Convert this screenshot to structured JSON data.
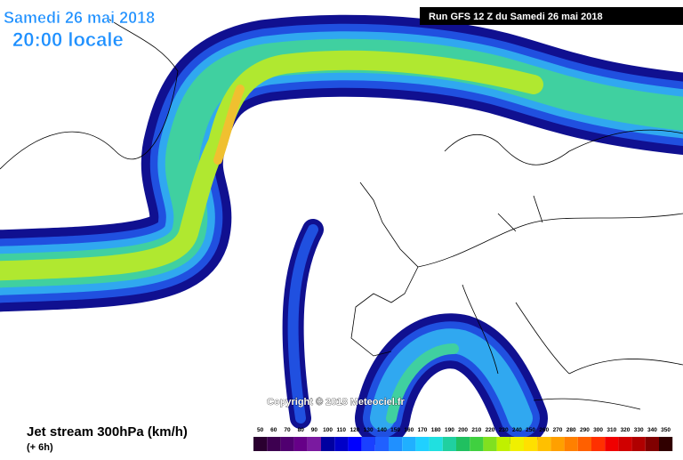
{
  "header": {
    "date": "Samedi 26 mai 2018",
    "time": "20:00 locale",
    "run": "Run GFS 12 Z du Samedi 26 mai 2018"
  },
  "copyright": "Copyright © 2018 Meteociel.fr",
  "legend": {
    "title": "Jet stream 300hPa (km/h)",
    "subtitle": "(+ 6h)",
    "ticks": [
      50,
      60,
      70,
      80,
      90,
      100,
      110,
      120,
      130,
      140,
      150,
      160,
      170,
      180,
      190,
      200,
      210,
      220,
      230,
      240,
      250,
      260,
      270,
      280,
      290,
      300,
      310,
      320,
      330,
      340,
      350
    ],
    "colors": [
      "#2a0030",
      "#3d0050",
      "#500070",
      "#660088",
      "#7a1aa0",
      "#0000a0",
      "#0000c8",
      "#0000ff",
      "#1a40ff",
      "#2060ff",
      "#2090ff",
      "#20b0ff",
      "#20d0ff",
      "#20e0e0",
      "#20d0a0",
      "#20c060",
      "#40d040",
      "#80e020",
      "#c0f000",
      "#f0f000",
      "#ffe000",
      "#ffc000",
      "#ffa000",
      "#ff8000",
      "#ff6000",
      "#ff3000",
      "#f00000",
      "#d00000",
      "#b00000",
      "#800000",
      "#300000"
    ]
  }
}
